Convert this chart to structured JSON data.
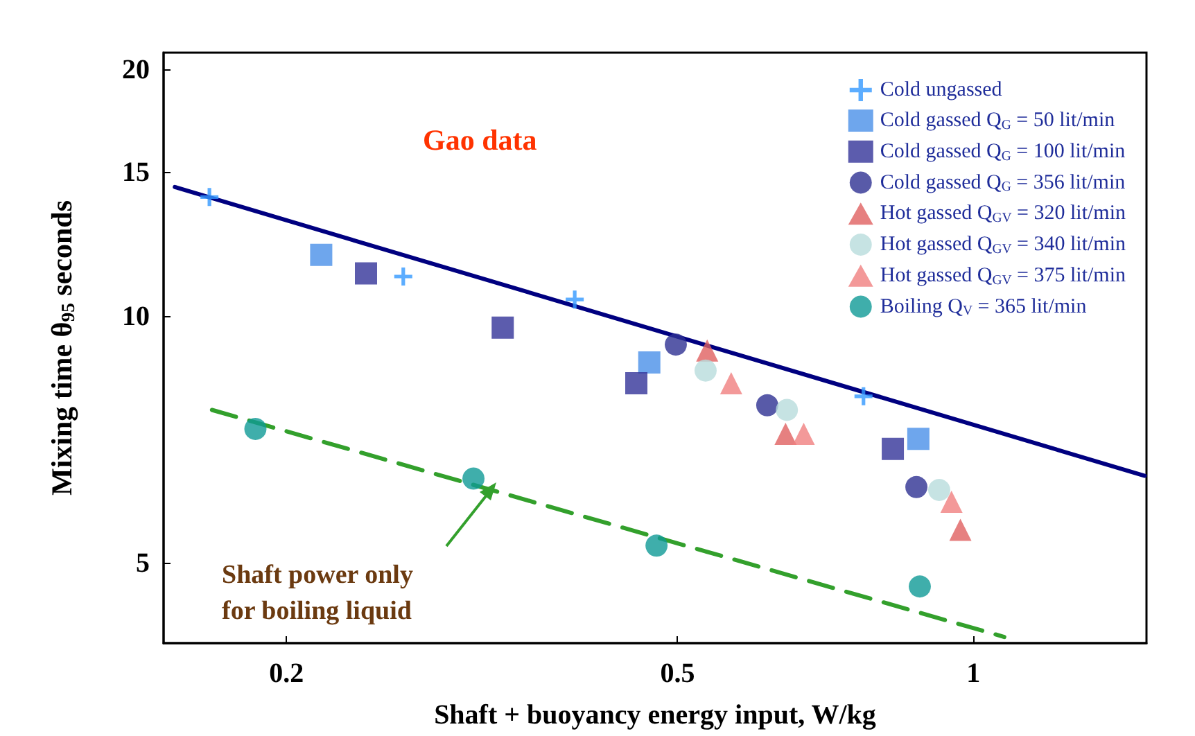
{
  "chart_data": {
    "type": "scatter",
    "xlabel": "Shaft + buoyancy energy input, W/kg",
    "ylabel": "Mixing time θ$_{95}$ seconds",
    "log": "xy",
    "xlim": [
      0.15,
      1.5
    ],
    "ylim": [
      4,
      21
    ],
    "xticks": [
      0.2,
      0.5,
      1
    ],
    "yticks": [
      5,
      10,
      15,
      20
    ],
    "grid": false,
    "legend": "top right",
    "annotations": [
      "Gao data",
      "Shaft power only for boiling liquid"
    ],
    "series": [
      {
        "name": "Cold ungassed",
        "color": "#3399ff",
        "marker": "cross",
        "x": [
          0.167,
          0.263,
          0.393,
          0.773
        ],
        "values": [
          14.0,
          11.2,
          10.5,
          8.0
        ]
      },
      {
        "name": "Cold gassed Q$_{G}$ = 50 lit/min",
        "color": "#4a90e8",
        "marker": "square",
        "x": [
          0.217,
          0.468,
          0.879
        ],
        "values": [
          11.9,
          8.8,
          7.1
        ]
      },
      {
        "name": "Cold gassed Q$_{G}$ = 100 lit/min",
        "color": "#333399",
        "marker": "square",
        "x": [
          0.241,
          0.332,
          0.454,
          0.828
        ],
        "values": [
          11.3,
          9.7,
          8.3,
          6.9
        ]
      },
      {
        "name": "Cold gassed Q$_{G}$ = 356 lit/min",
        "color": "#2e3192",
        "marker": "circle",
        "x": [
          0.498,
          0.617,
          0.875
        ],
        "values": [
          9.25,
          7.8,
          6.2
        ]
      },
      {
        "name": "Hot gassed Q$_{GV}$ = 320 lit/min",
        "color": "#e06060",
        "marker": "triangle",
        "x": [
          0.536,
          0.644,
          0.97
        ],
        "values": [
          9.1,
          7.2,
          5.5
        ]
      },
      {
        "name": "Hot gassed Q$_{GV}$ = 340 lit/min",
        "color": "#b8dcdc",
        "marker": "circle",
        "x": [
          0.534,
          0.646,
          0.923
        ],
        "values": [
          8.6,
          7.7,
          6.15
        ]
      },
      {
        "name": "Hot gassed Q$_{GV}$ = 375 lit/min",
        "color": "#f08080",
        "marker": "triangle",
        "x": [
          0.567,
          0.672,
          0.95
        ],
        "values": [
          8.3,
          7.2,
          5.95
        ]
      },
      {
        "name": "Boiling Q$_{V}$ = 365 lit/min",
        "color": "#0f9a96",
        "marker": "circle",
        "x": [
          0.186,
          0.31,
          0.476,
          0.882
        ],
        "values": [
          7.3,
          6.35,
          5.26,
          4.69
        ]
      },
      {
        "type": "line",
        "color": "#000080",
        "marker": "none",
        "line_style": "solid",
        "x": [
          0.154,
          1.494
        ],
        "values": [
          14.4,
          6.4
        ]
      },
      {
        "type": "line",
        "color": "#33a02c",
        "marker": "none",
        "line_style": "dashed",
        "x": [
          0.168,
          1.075
        ],
        "values": [
          7.7,
          4.07
        ]
      }
    ]
  }
}
